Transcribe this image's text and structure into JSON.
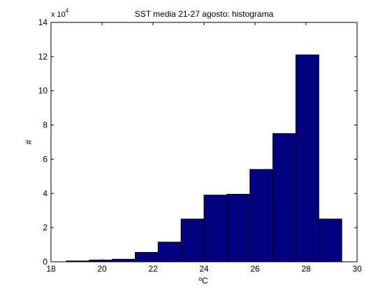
{
  "chart_data": {
    "type": "bar",
    "title": "SST media 21-27 agosto: histograma",
    "xlabel": "ºC",
    "ylabel": "#",
    "y_scale_label": "x 10",
    "y_scale_exponent": "4",
    "xlim": [
      18,
      30
    ],
    "ylim": [
      0,
      14
    ],
    "x_ticks": [
      18,
      20,
      22,
      24,
      26,
      28,
      30
    ],
    "y_ticks": [
      0,
      2,
      4,
      6,
      8,
      10,
      12,
      14
    ],
    "bins": [
      {
        "x0": 18.6,
        "x1": 19.5,
        "value": 0.05
      },
      {
        "x0": 19.5,
        "x1": 20.4,
        "value": 0.1
      },
      {
        "x0": 20.4,
        "x1": 21.3,
        "value": 0.15
      },
      {
        "x0": 21.3,
        "x1": 22.2,
        "value": 0.55
      },
      {
        "x0": 22.2,
        "x1": 23.1,
        "value": 1.15
      },
      {
        "x0": 23.1,
        "x1": 24.0,
        "value": 2.5
      },
      {
        "x0": 24.0,
        "x1": 24.9,
        "value": 3.9
      },
      {
        "x0": 24.9,
        "x1": 25.8,
        "value": 3.95
      },
      {
        "x0": 25.8,
        "x1": 26.7,
        "value": 5.4
      },
      {
        "x0": 26.7,
        "x1": 27.6,
        "value": 7.5
      },
      {
        "x0": 27.6,
        "x1": 28.5,
        "value": 12.1
      },
      {
        "x0": 28.5,
        "x1": 29.4,
        "value": 2.5
      }
    ],
    "bar_color": "#000080",
    "edge_color": "#000000",
    "grid": false
  }
}
